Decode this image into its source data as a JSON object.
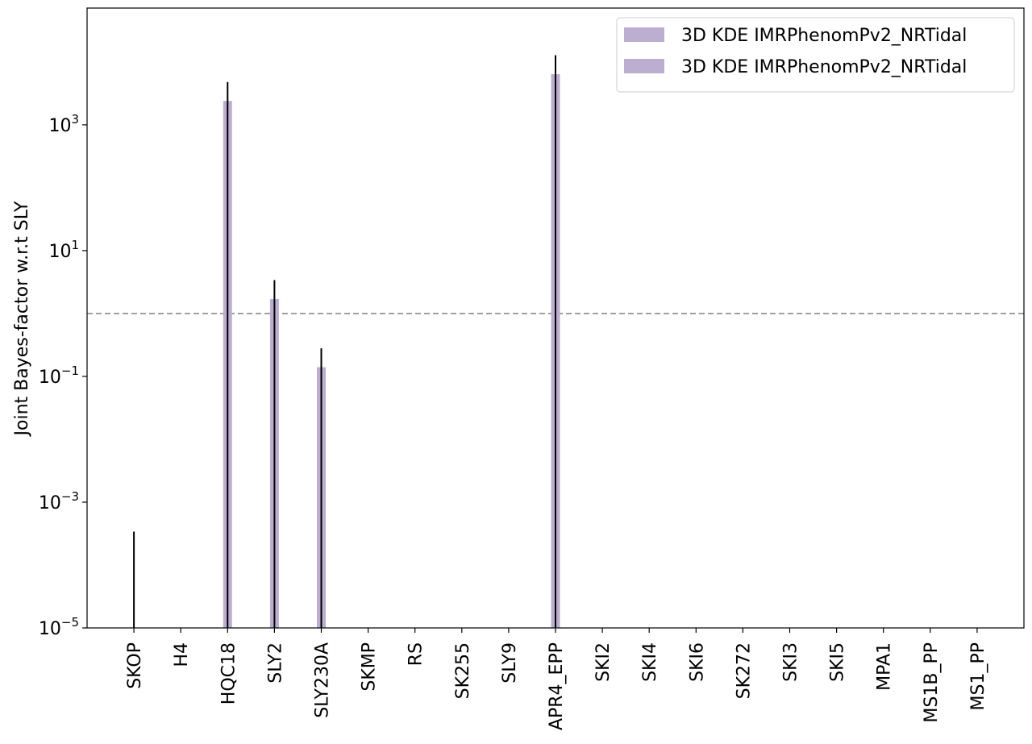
{
  "chart_data": {
    "type": "bar",
    "log_y": true,
    "ylabel": "Joint Bayes-factor w.r.t SLY",
    "categories": [
      "SKOP",
      "H4",
      "HQC18",
      "SLY2",
      "SLY230A",
      "SKMP",
      "RS",
      "SK255",
      "SLY9",
      "APR4_EPP",
      "SKI2",
      "SKI4",
      "SKI6",
      "SK272",
      "SKI3",
      "SKI5",
      "MPA1",
      "MS1B_PP",
      "MS1_PP"
    ],
    "series": [
      {
        "name": "3D KDE IMRPhenomPv2_NRTidal",
        "color": "#bcaed1",
        "values": [
          0,
          0,
          2400,
          1.7,
          0.14,
          0,
          0,
          0,
          0,
          6400,
          0,
          0,
          0,
          0,
          0,
          0,
          0,
          0,
          0
        ],
        "errors": [
          0.00034,
          0,
          2400,
          1.7,
          0.14,
          0,
          0,
          0,
          0,
          6400,
          0,
          0,
          0,
          0,
          0,
          0,
          0,
          0,
          0
        ]
      },
      {
        "name": "3D KDE IMRPhenomPv2_NRTidal",
        "color": "#bcaed1",
        "values": [
          null,
          null,
          null,
          null,
          null,
          null,
          null,
          null,
          null,
          null,
          null,
          null,
          null,
          null,
          null,
          null,
          null,
          null,
          null
        ]
      }
    ],
    "reference_line": 1,
    "ylim": [
      1e-05,
      72000
    ],
    "yticks": [
      {
        "value": 1e-05,
        "label": "10",
        "exponent": "−5"
      },
      {
        "value": 0.001,
        "label": "10",
        "exponent": "−3"
      },
      {
        "value": 0.1,
        "label": "10",
        "exponent": "−1"
      },
      {
        "value": 10,
        "label": "10",
        "exponent": "1"
      },
      {
        "value": 1000,
        "label": "10",
        "exponent": "3"
      }
    ],
    "legend": "upper right",
    "error_color": "#000000"
  }
}
